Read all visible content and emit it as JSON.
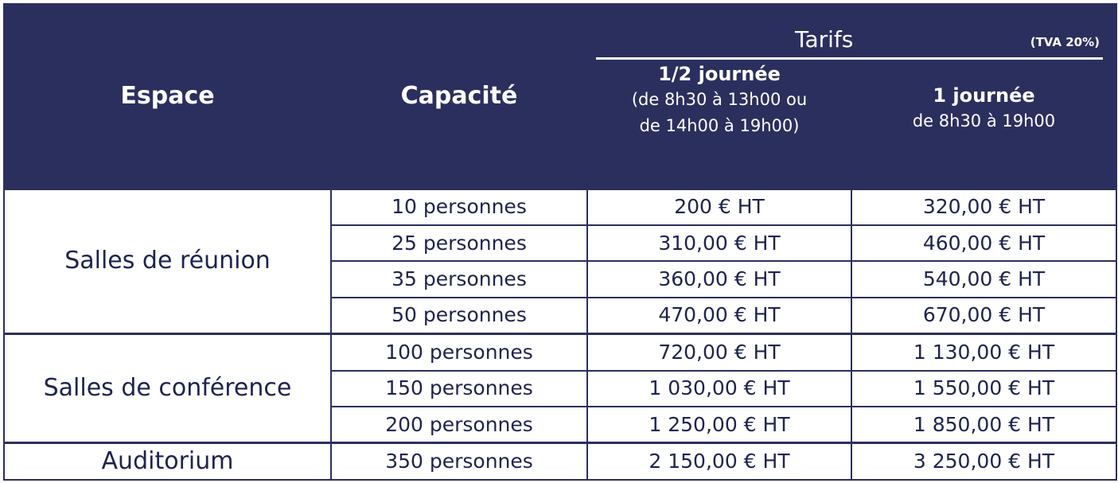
{
  "header": {
    "espace": "Espace",
    "capacite": "Capacité",
    "tarifs": "Tarifs",
    "tva": "(TVA 20%)",
    "half_day": {
      "title": "1/2 journée",
      "line1": "(de 8h30 à 13h00 ou",
      "line2": "de 14h00 à 19h00)"
    },
    "full_day": {
      "title": "1 journée",
      "line1": "de 8h30 à 19h00"
    }
  },
  "groups": [
    {
      "espace": "Salles de réunion",
      "rows": [
        {
          "capacite": "10 personnes",
          "half": "200 € HT",
          "full": "320,00 € HT"
        },
        {
          "capacite": "25 personnes",
          "half": "310,00 € HT",
          "full": "460,00 € HT"
        },
        {
          "capacite": "35 personnes",
          "half": "360,00 € HT",
          "full": "540,00 € HT"
        },
        {
          "capacite": "50 personnes",
          "half": "470,00 € HT",
          "full": "670,00 € HT"
        }
      ]
    },
    {
      "espace": "Salles de conférence",
      "rows": [
        {
          "capacite": "100 personnes",
          "half": "720,00 € HT",
          "full": "1 130,00 € HT"
        },
        {
          "capacite": "150 personnes",
          "half": "1 030,00 € HT",
          "full": "1 550,00 € HT"
        },
        {
          "capacite": "200 personnes",
          "half": "1 250,00 € HT",
          "full": "1 850,00 € HT"
        }
      ]
    },
    {
      "espace": "Auditorium",
      "rows": [
        {
          "capacite": "350 personnes",
          "half": "2 150,00 € HT",
          "full": "3 250,00 € HT"
        }
      ]
    }
  ],
  "colors": {
    "header_bg": "#2b2f5e",
    "text": "#1e2350",
    "border": "#2b2f5e"
  }
}
